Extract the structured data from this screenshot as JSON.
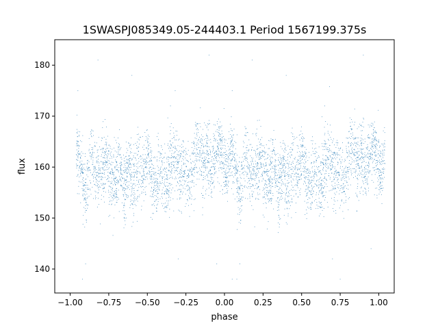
{
  "chart_data": {
    "type": "scatter",
    "title": "1SWASPJ085349.05-244403.1 Period 1567199.375s",
    "xlabel": "phase",
    "ylabel": "flux",
    "xlim": [
      -1.1,
      1.1
    ],
    "ylim": [
      135.3,
      185
    ],
    "xticks": [
      -1.0,
      -0.75,
      -0.5,
      -0.25,
      0.0,
      0.25,
      0.5,
      0.75,
      1.0
    ],
    "xtick_labels": [
      "−1.00",
      "−0.75",
      "−0.50",
      "−0.25",
      "0.00",
      "0.25",
      "0.50",
      "0.75",
      "1.00"
    ],
    "yticks": [
      140,
      150,
      160,
      170,
      180
    ],
    "ytick_labels": [
      "140",
      "150",
      "160",
      "170",
      "180"
    ],
    "grid": false,
    "legend": "none",
    "point_color": "#1f77b4",
    "profile": {
      "phase": [
        -0.96,
        -0.93,
        -0.9,
        -0.86,
        -0.83,
        -0.8,
        -0.77,
        -0.74,
        -0.71,
        -0.68,
        -0.65,
        -0.62,
        -0.59,
        -0.56,
        -0.53,
        -0.5,
        -0.47,
        -0.44,
        -0.41,
        -0.38,
        -0.35,
        -0.32,
        -0.29,
        -0.26,
        -0.23,
        -0.2,
        -0.17,
        -0.14,
        -0.11,
        -0.08,
        -0.05,
        -0.02,
        0.02,
        0.04
      ],
      "flux": [
        164,
        160,
        155,
        162,
        158,
        159,
        162,
        158,
        157,
        160,
        156,
        160,
        157,
        160,
        158,
        162,
        158,
        157,
        159,
        157,
        160,
        163,
        158,
        160,
        157,
        161,
        165,
        160,
        163,
        158,
        164,
        163,
        158,
        164
      ]
    },
    "symmetric_copy_offset": 1.0,
    "n_points_per_half": 2300,
    "scatter_sd": 3.2,
    "outliers": [
      [
        -0.95,
        175
      ],
      [
        -0.9,
        141
      ],
      [
        -0.92,
        138
      ],
      [
        -0.6,
        178
      ],
      [
        -0.82,
        181
      ],
      [
        -0.35,
        172
      ],
      [
        -0.1,
        182
      ],
      [
        0.05,
        138
      ],
      [
        -0.3,
        142
      ],
      [
        -0.05,
        141
      ],
      [
        0.05,
        175
      ],
      [
        0.1,
        141
      ],
      [
        0.08,
        138
      ],
      [
        0.4,
        178
      ],
      [
        0.18,
        181
      ],
      [
        0.65,
        172
      ],
      [
        0.9,
        182
      ],
      [
        0.95,
        144
      ],
      [
        0.7,
        142
      ],
      [
        0.75,
        138
      ]
    ]
  }
}
